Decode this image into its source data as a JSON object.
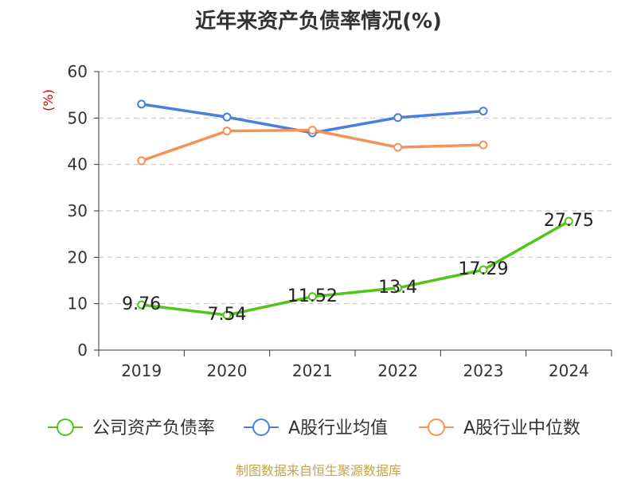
{
  "chart_data": {
    "type": "line",
    "title": "近年来资产负债率情况(%)",
    "ylabel": "(%)",
    "xlabel": "",
    "categories": [
      "2019",
      "2020",
      "2021",
      "2022",
      "2023",
      "2024"
    ],
    "ylim": [
      0,
      60
    ],
    "yticks": [
      0,
      10,
      20,
      30,
      40,
      50,
      60
    ],
    "grid": true,
    "legend": "bottom",
    "series": [
      {
        "name": "公司资产负债率",
        "color": "#52c41a",
        "values": [
          9.76,
          7.54,
          11.52,
          13.4,
          17.29,
          27.75
        ],
        "labels": [
          "9.76",
          "7.54",
          "11.52",
          "13.4",
          "17.29",
          "27.75"
        ]
      },
      {
        "name": "A股行业均值",
        "color": "#4a7fe0",
        "values": [
          53.0,
          50.2,
          46.8,
          50.1,
          51.5,
          null
        ],
        "labels": []
      },
      {
        "name": "A股行业中位数",
        "color": "#f5925a",
        "values": [
          40.8,
          47.2,
          47.4,
          43.7,
          44.2,
          null
        ],
        "labels": []
      }
    ],
    "source": "制图数据来自恒生聚源数据库",
    "ylabel_color": "#cc0000"
  }
}
